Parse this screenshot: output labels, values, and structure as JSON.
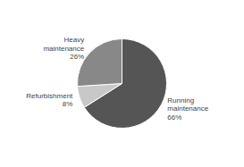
{
  "chart_data": {
    "type": "pie",
    "categories": [
      "Running\nmaintenance\n66%",
      "Refurbishment\n8%",
      "Heavy\nmaintenance\n26%"
    ],
    "values": [
      66,
      8,
      26
    ],
    "colors": [
      "#555555",
      "#c8c8c8",
      "#888888"
    ]
  }
}
